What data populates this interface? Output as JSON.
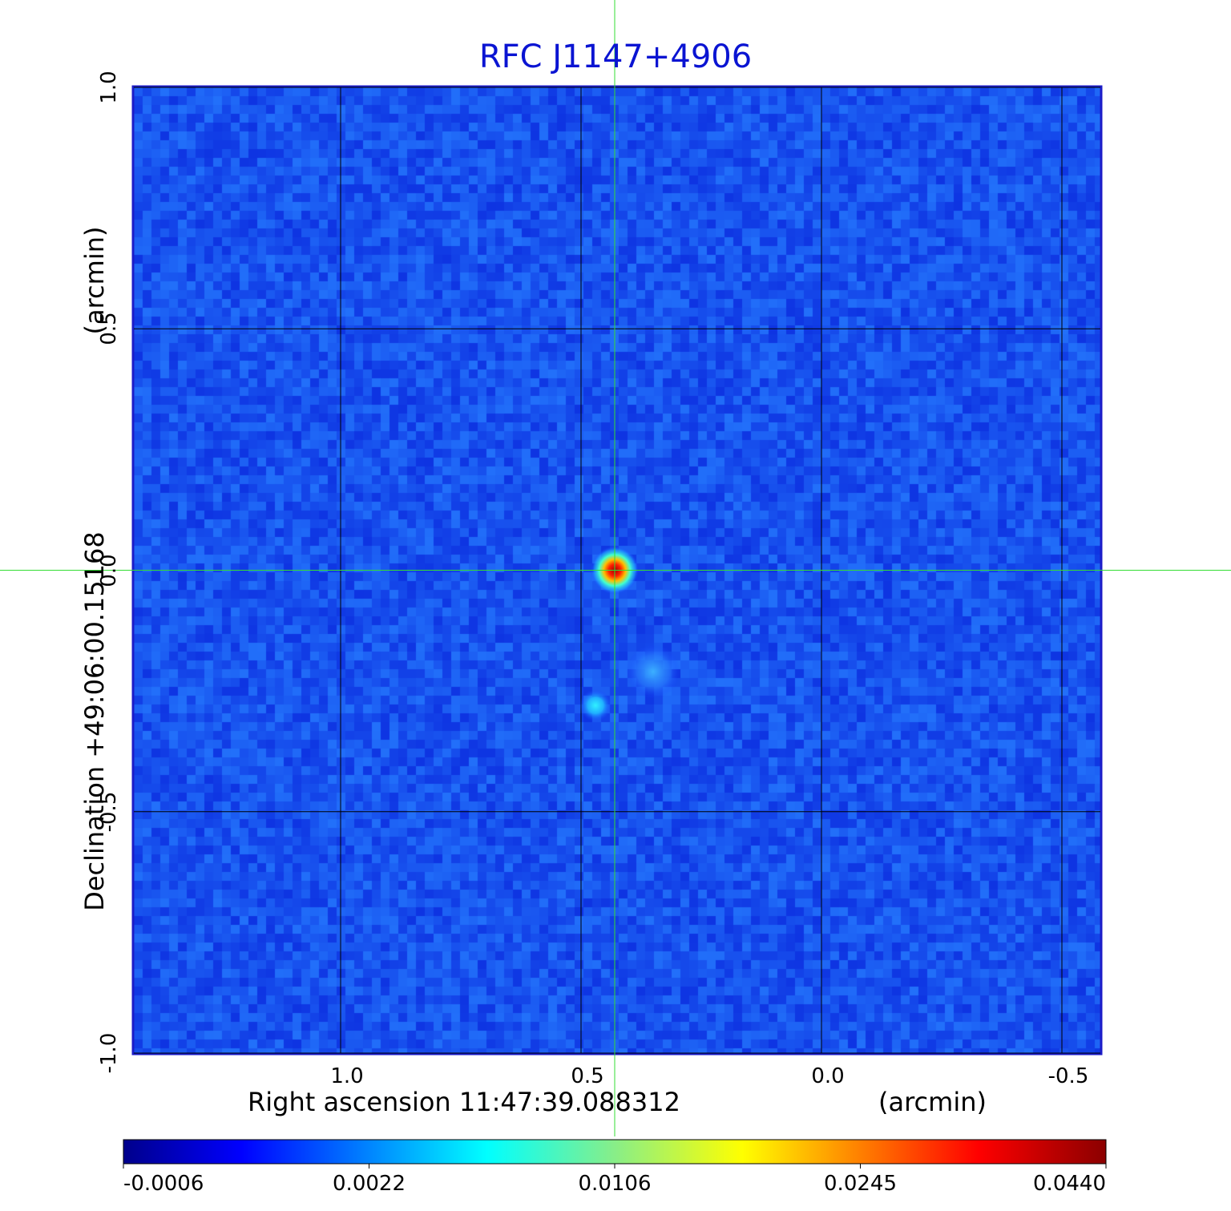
{
  "chart_data": {
    "type": "heatmap",
    "title": "RFC J1147+4906",
    "xlabel": "Right ascension  11:47:39.088312",
    "xunit": "(arcmin)",
    "ylabel": "Declination  +49:06:00.15168",
    "yunit": "(arcmin)",
    "xlim": [
      1.43,
      -0.58
    ],
    "ylim": [
      -1.0,
      1.0
    ],
    "x_ticks": [
      1.0,
      0.5,
      0.0,
      -0.5
    ],
    "x_tick_labels": [
      "1.0",
      "0.5",
      "0.0",
      "-0.5"
    ],
    "y_ticks": [
      -1.0,
      -0.5,
      0.0,
      0.5,
      1.0
    ],
    "y_tick_labels": [
      "-1.0",
      "-0.5",
      "0.0",
      "0.5",
      "1.0"
    ],
    "grid": true,
    "crosshair": {
      "x": 0.43,
      "y": 0.0,
      "color": "#33dd33"
    },
    "colorbar": {
      "orientation": "horizontal",
      "location": "bottom",
      "tick_labels": [
        "-0.0006",
        "0.0022",
        "0.0106",
        "0.0245",
        "0.0440"
      ],
      "tick_values": [
        -0.0006,
        0.0022,
        0.0106,
        0.0245,
        0.044
      ],
      "colors": [
        "#00008b",
        "#0000ff",
        "#00ffff",
        "#ffff00",
        "#ff0000",
        "#8b0000"
      ]
    },
    "sources": [
      {
        "x": 0.43,
        "y": 0.0,
        "peak": 0.044
      },
      {
        "x": 0.47,
        "y": -0.28,
        "peak": 0.006
      },
      {
        "x": 0.35,
        "y": -0.21,
        "peak": 0.0035
      }
    ],
    "background_level": -0.0001
  }
}
